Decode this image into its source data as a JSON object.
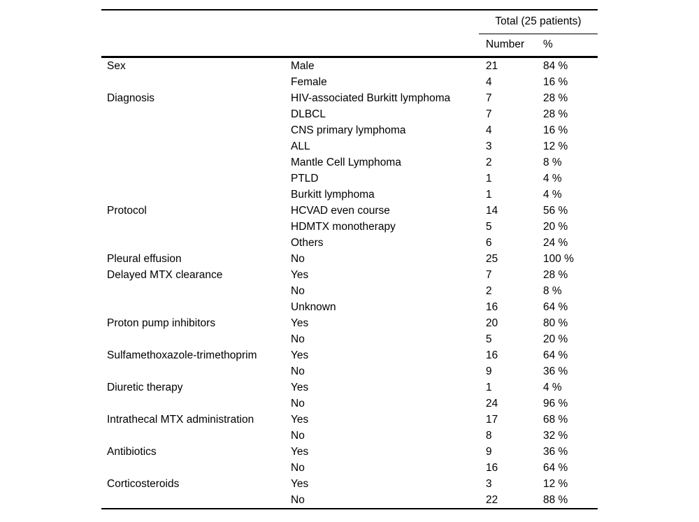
{
  "table": {
    "header": {
      "total_label": "Total (25 patients)",
      "col_number": "Number",
      "col_percent": "%"
    },
    "groups": [
      {
        "category": "Sex",
        "rows": [
          {
            "label": "Male",
            "number": "21",
            "percent": "84 %"
          },
          {
            "label": "Female",
            "number": "4",
            "percent": "16 %"
          }
        ]
      },
      {
        "category": "Diagnosis",
        "rows": [
          {
            "label": "HIV-associated Burkitt lymphoma",
            "number": "7",
            "percent": "28 %"
          },
          {
            "label": "DLBCL",
            "number": "7",
            "percent": "28 %"
          },
          {
            "label": "CNS primary lymphoma",
            "number": "4",
            "percent": "16 %"
          },
          {
            "label": "ALL",
            "number": "3",
            "percent": "12 %"
          },
          {
            "label": "Mantle Cell Lymphoma",
            "number": "2",
            "percent": "8 %"
          },
          {
            "label": "PTLD",
            "number": "1",
            "percent": "4 %"
          },
          {
            "label": "Burkitt lymphoma",
            "number": "1",
            "percent": "4 %"
          }
        ]
      },
      {
        "category": "Protocol",
        "rows": [
          {
            "label": "HCVAD even course",
            "number": "14",
            "percent": "56 %"
          },
          {
            "label": "HDMTX monotherapy",
            "number": "5",
            "percent": "20 %"
          },
          {
            "label": "Others",
            "number": "6",
            "percent": "24 %"
          }
        ]
      },
      {
        "category": "Pleural effusion",
        "rows": [
          {
            "label": "No",
            "number": "25",
            "percent": "100 %"
          }
        ]
      },
      {
        "category": "Delayed MTX clearance",
        "rows": [
          {
            "label": "Yes",
            "number": "7",
            "percent": "28 %"
          },
          {
            "label": "No",
            "number": "2",
            "percent": "8 %"
          },
          {
            "label": "Unknown",
            "number": "16",
            "percent": "64 %"
          }
        ]
      },
      {
        "category": "Proton pump inhibitors",
        "rows": [
          {
            "label": "Yes",
            "number": "20",
            "percent": "80 %"
          },
          {
            "label": "No",
            "number": "5",
            "percent": "20 %"
          }
        ]
      },
      {
        "category": "Sulfamethoxazole-trimethoprim",
        "rows": [
          {
            "label": "Yes",
            "number": "16",
            "percent": "64 %"
          },
          {
            "label": "No",
            "number": "9",
            "percent": "36 %"
          }
        ]
      },
      {
        "category": "Diuretic therapy",
        "rows": [
          {
            "label": "Yes",
            "number": "1",
            "percent": "4 %"
          },
          {
            "label": "No",
            "number": "24",
            "percent": "96 %"
          }
        ]
      },
      {
        "category": "Intrathecal MTX administration",
        "rows": [
          {
            "label": "Yes",
            "number": "17",
            "percent": "68 %"
          },
          {
            "label": "No",
            "number": "8",
            "percent": "32 %"
          }
        ]
      },
      {
        "category": "Antibiotics",
        "rows": [
          {
            "label": "Yes",
            "number": "9",
            "percent": "36 %"
          },
          {
            "label": "No",
            "number": "16",
            "percent": "64 %"
          }
        ]
      },
      {
        "category": "Corticosteroids",
        "rows": [
          {
            "label": "Yes",
            "number": "3",
            "percent": "12 %"
          },
          {
            "label": "No",
            "number": "22",
            "percent": "88 %"
          }
        ]
      }
    ]
  }
}
